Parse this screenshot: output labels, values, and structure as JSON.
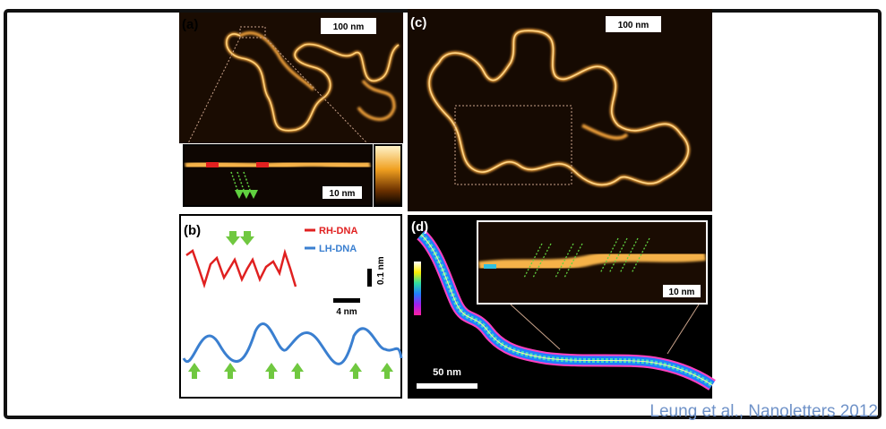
{
  "panels": [
    {
      "label": "(a)",
      "scale_bar": "100 nm",
      "inset_scale_bar": "10 nm"
    },
    {
      "label": "(b)",
      "legend": [
        "RH-DNA",
        "LH-DNA"
      ],
      "vertical_scale": "0.1 nm",
      "horizontal_scale": "4 nm"
    },
    {
      "label": "(c)",
      "scale_bar": "100 nm"
    },
    {
      "label": "(d)",
      "inset_scale_bar": "10 nm",
      "scale_bar": "50 nm"
    }
  ],
  "citation": "Leung et al., Nanoletters 2012"
}
